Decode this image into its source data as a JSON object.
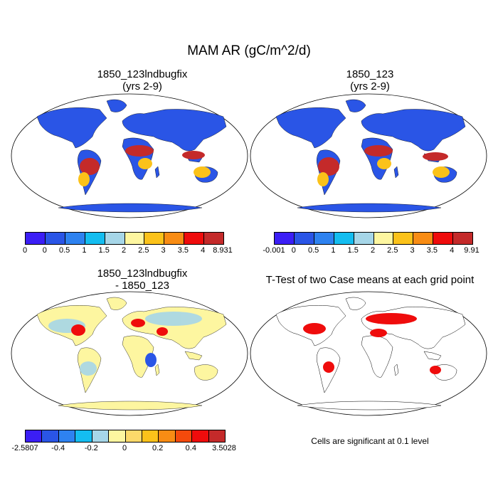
{
  "figure_title": "MAM AR (gC/m^2/d)",
  "panels": [
    {
      "id": "p1",
      "title_line1": "1850_123lndbugfix",
      "title_line2": "(yrs 2-9)",
      "colorbar": {
        "colors": [
          "#3b1ef5",
          "#2a55e6",
          "#2e82f0",
          "#14bdf0",
          "#a6d6e8",
          "#fdf6a0",
          "#fbc21a",
          "#f88c14",
          "#ef0c0c",
          "#c42a2a"
        ],
        "labels": [
          "0",
          "0",
          "0.5",
          "1",
          "1.5",
          "2",
          "2.5",
          "3",
          "3.5",
          "4",
          "8.931"
        ]
      }
    },
    {
      "id": "p2",
      "title_line1": "1850_123",
      "title_line2": "(yrs 2-9)",
      "colorbar": {
        "colors": [
          "#3b1ef5",
          "#2a55e6",
          "#2e82f0",
          "#14bdf0",
          "#a6d6e8",
          "#fdf6a0",
          "#fbc21a",
          "#f88c14",
          "#ef0c0c",
          "#c42a2a"
        ],
        "labels": [
          "-0.001",
          "0",
          "0.5",
          "1",
          "1.5",
          "2",
          "2.5",
          "3",
          "3.5",
          "4",
          "9.91"
        ]
      }
    },
    {
      "id": "p3",
      "title_line1": "1850_123lndbugfix",
      "title_line2": "- 1850_123",
      "colorbar": {
        "colors": [
          "#3b1ef5",
          "#2a55e6",
          "#2e82f0",
          "#14bdf0",
          "#a6d6e8",
          "#fdf6a0",
          "#fcd96a",
          "#fbc21a",
          "#f88c14",
          "#f44a0c",
          "#ef0c0c",
          "#c42a2a"
        ],
        "labels": [
          "-2.5807",
          "",
          "-0.4",
          "",
          "-0.2",
          "",
          "0",
          "",
          "0.2",
          "",
          "0.4",
          "",
          "3.5028"
        ]
      }
    },
    {
      "id": "p4",
      "title_line1": "T-Test of two Case means at each grid point",
      "title_line2": "",
      "note": "Cells are significant at 0.1 level"
    }
  ]
}
